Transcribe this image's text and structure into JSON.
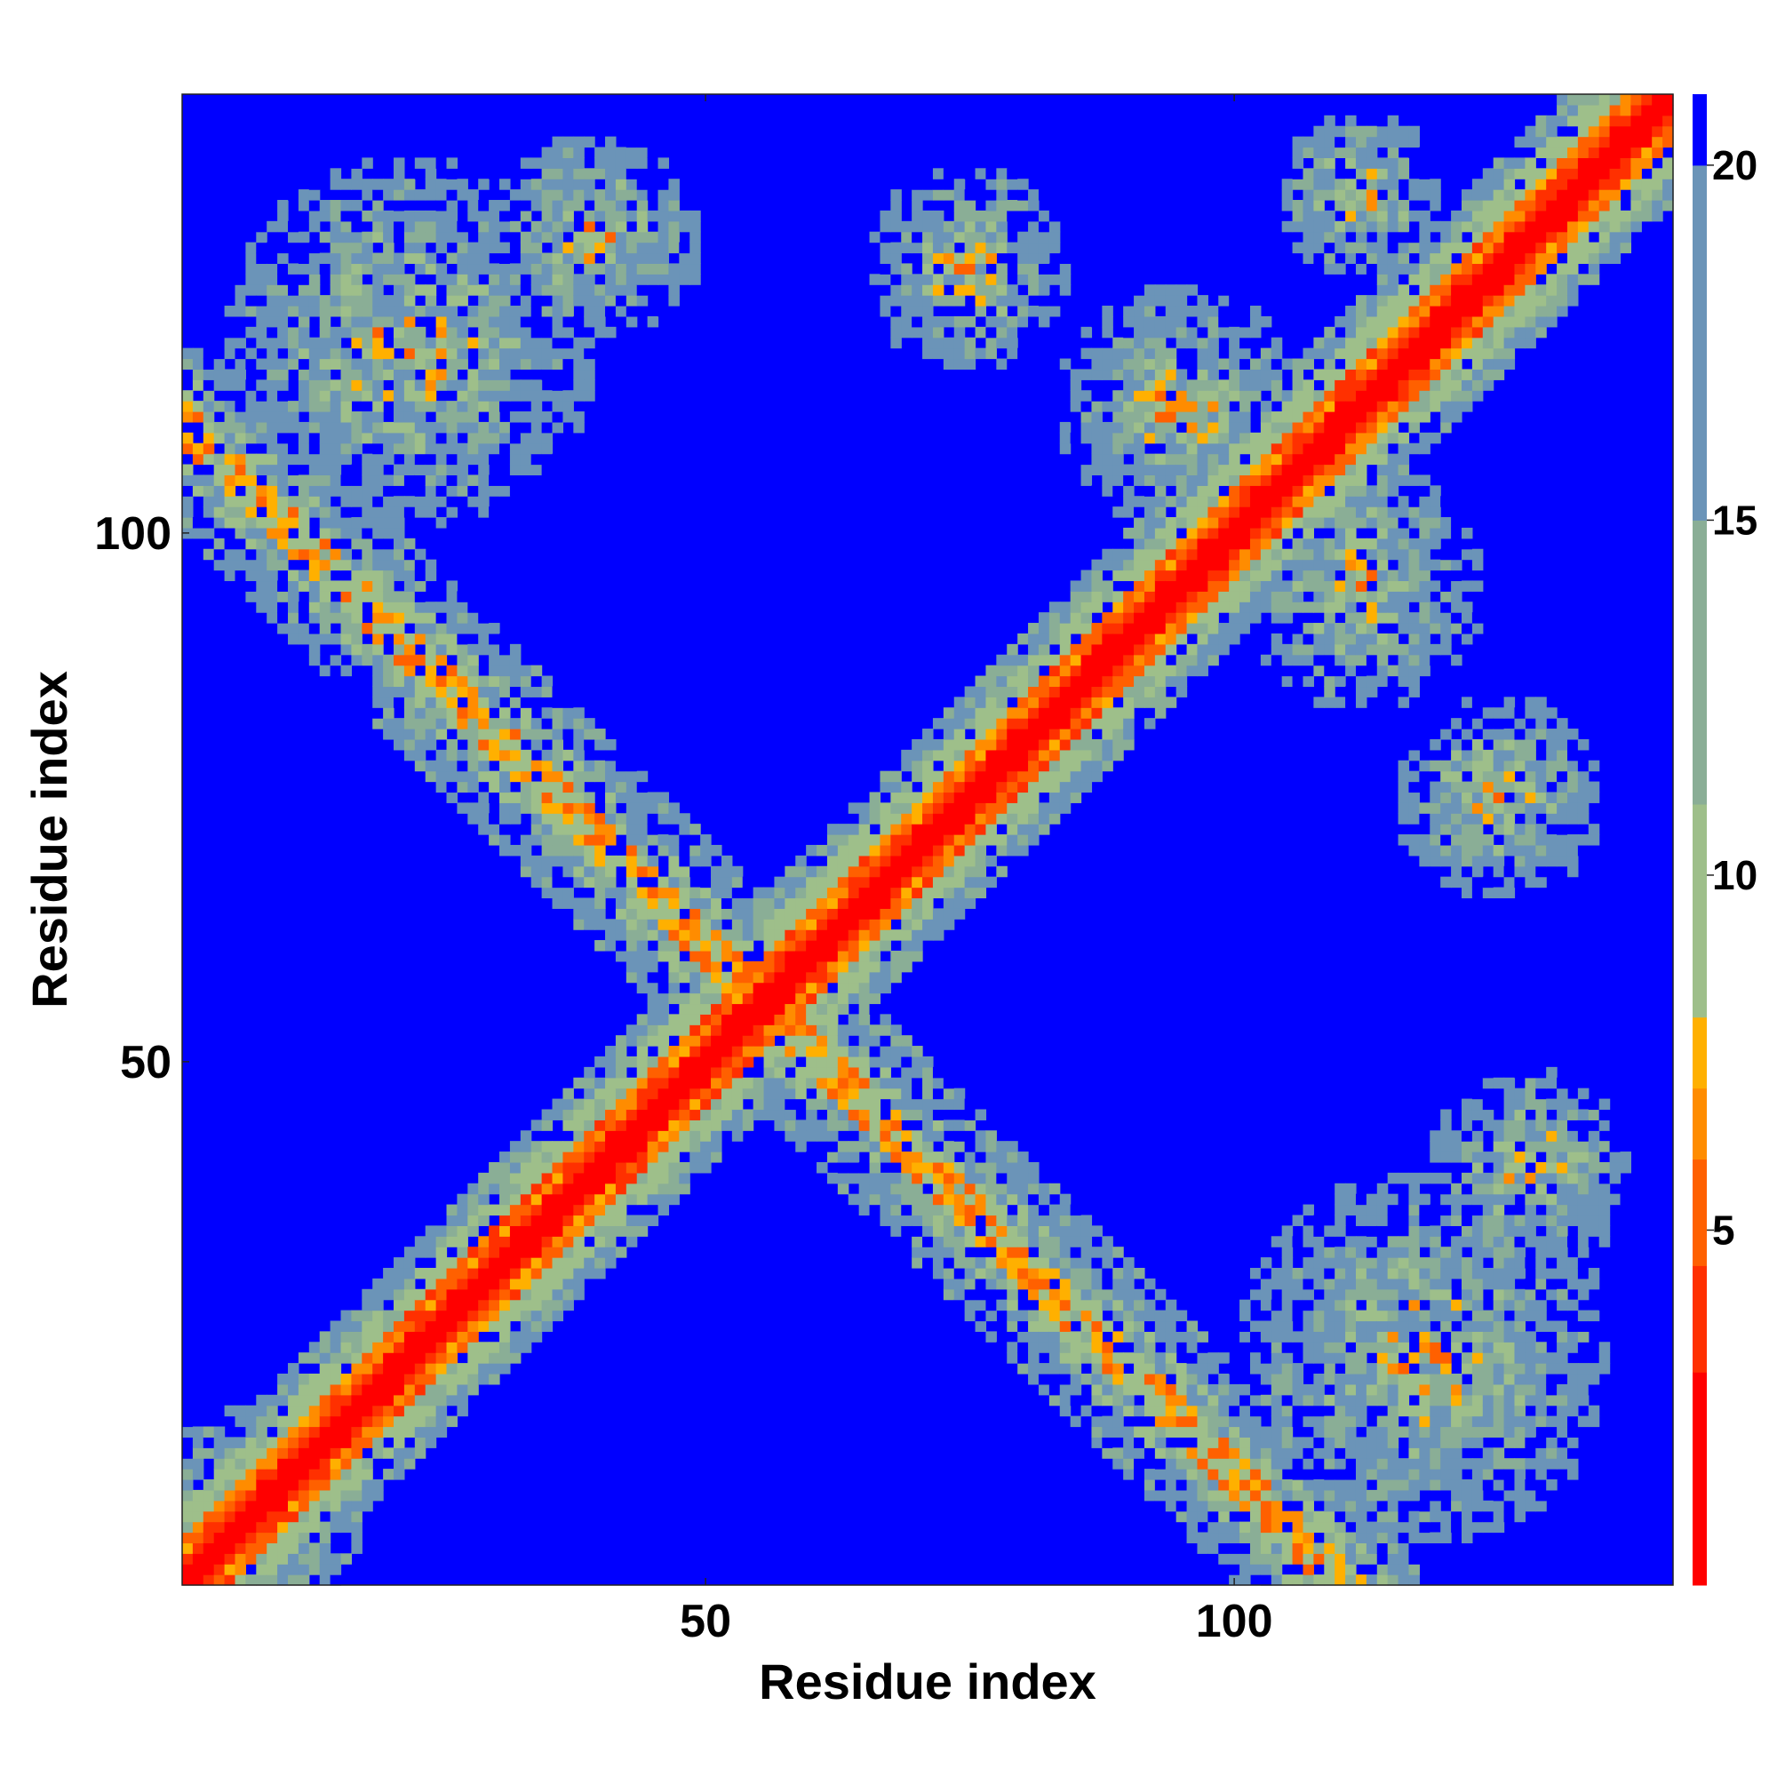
{
  "chart_data": {
    "type": "heatmap",
    "title": "",
    "xlabel": "Residue index",
    "ylabel": "Residue index",
    "n_residues": 141,
    "xlim": [
      1,
      141
    ],
    "ylim": [
      1,
      141
    ],
    "x_ticks": [
      50,
      100
    ],
    "y_ticks": [
      50,
      100
    ],
    "x_tick_labels": [
      "50",
      "100"
    ],
    "y_tick_labels": [
      "50",
      "100"
    ],
    "colorbar": {
      "min": 0,
      "max": 21,
      "ticks": [
        5,
        10,
        15,
        20
      ],
      "tick_labels": [
        "5",
        "10",
        "15",
        "20"
      ],
      "colors": [
        "#ff0000",
        "#ff3000",
        "#ff6000",
        "#ff8c00",
        "#ffb000",
        "#9ebf8a",
        "#8aae96",
        "#6b94b8",
        "#0000ff"
      ],
      "stops": [
        0,
        3,
        4.5,
        6,
        7,
        8,
        11,
        15,
        20,
        21
      ]
    },
    "structure": {
      "main_diagonal": "distance low (red) along i=j, widening green band",
      "anti_diagonal_contacts": [
        {
          "from": [
            1,
            141
          ],
          "to": [
            55,
            55
          ],
          "note": "beta-sheet like anti-parallel contact"
        },
        {
          "from": [
            55,
            55
          ],
          "to": [
            112,
            0
          ]
        }
      ],
      "off_diagonal_patches": [
        {
          "center": [
            25,
            120
          ],
          "radius": 18
        },
        {
          "center": [
            110,
            25
          ],
          "radius": 18
        },
        {
          "center": [
            90,
            115
          ],
          "radius": 14
        },
        {
          "center": [
            120,
            80
          ],
          "radius": 12
        },
        {
          "center": [
            130,
            130
          ],
          "radius": 10
        },
        {
          "center": [
            5,
            10
          ],
          "radius": 10
        }
      ]
    },
    "grid": false,
    "legend": "colorbar-right"
  }
}
